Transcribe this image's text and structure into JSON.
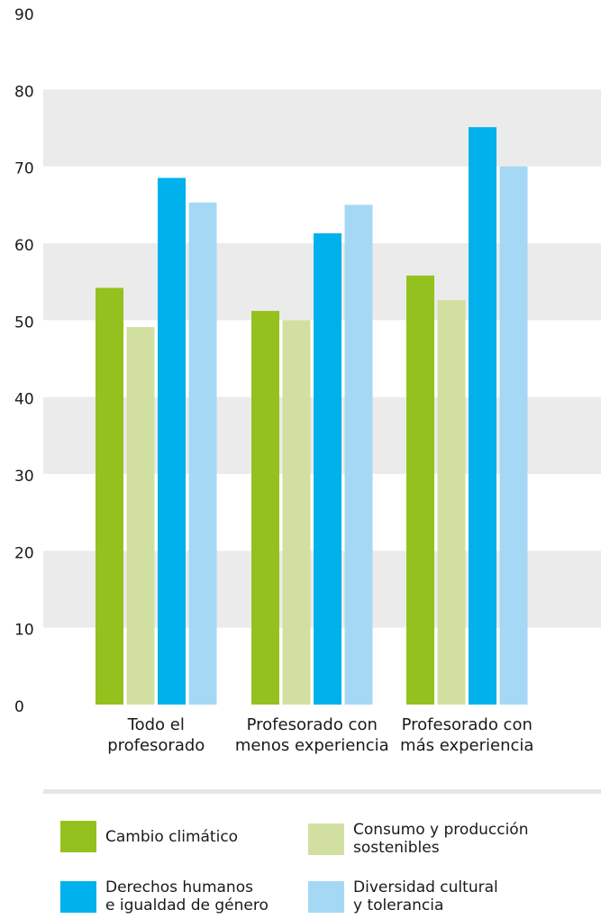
{
  "chart_data": {
    "type": "bar",
    "title": "",
    "xlabel": "",
    "ylabel": "",
    "ylim": [
      0,
      90
    ],
    "yticks": [
      0,
      10,
      20,
      30,
      40,
      50,
      60,
      70,
      80,
      90
    ],
    "grid": "alternating horizontal bands",
    "legend_position": "bottom",
    "categories": [
      [
        "Todo el",
        "profesorado"
      ],
      [
        "Profesorado con",
        "menos experiencia"
      ],
      [
        "Profesorado con",
        "más experiencia"
      ]
    ],
    "series": [
      {
        "name": "Cambio climático",
        "color": "#95c11f",
        "values": [
          54.2,
          51.2,
          55.8
        ]
      },
      {
        "name": "Consumo y producción\nsostenibles",
        "color": "#d1e0a0",
        "values": [
          49.1,
          50.0,
          52.6
        ]
      },
      {
        "name": "Derechos humanos\ne igualdad de género",
        "color": "#00b1eb",
        "values": [
          68.5,
          61.3,
          75.1
        ]
      },
      {
        "name": "Diversidad cultural\ny tolerancia",
        "color": "#a5d8f5",
        "values": [
          65.3,
          65.0,
          70.0
        ]
      }
    ],
    "band_color": "#ebebeb"
  }
}
